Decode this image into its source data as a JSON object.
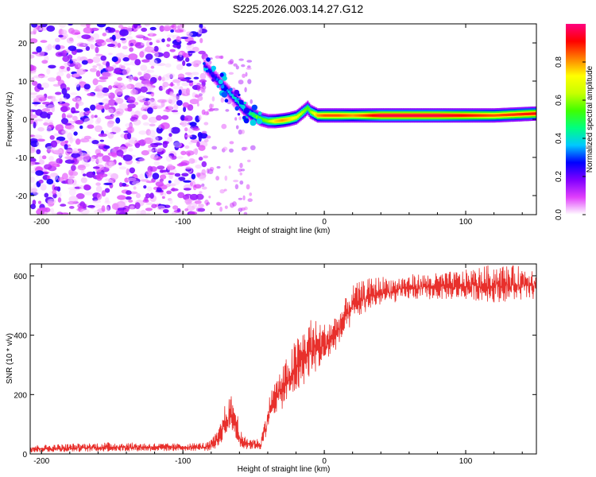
{
  "figure_title": "S225.2026.003.14.27.G12",
  "chart_data": [
    {
      "type": "heatmap",
      "title": "S225.2026.003.14.27.G12",
      "xlabel": "Height of straight line (km)",
      "ylabel": "Frequency (Hz)",
      "xlim": [
        -208,
        150
      ],
      "ylim": [
        -25,
        25
      ],
      "x_ticks": [
        -200,
        -100,
        0,
        100
      ],
      "y_ticks": [
        -20,
        -10,
        0,
        10,
        20
      ],
      "x_tick_labels": [
        "-200",
        "-100",
        "0",
        "100"
      ],
      "y_tick_labels": [
        "-20",
        "-10",
        "0",
        "10",
        "20"
      ],
      "noise_region_x": [
        -208,
        -83
      ],
      "ridge": {
        "x": [
          -85,
          -80,
          -75,
          -70,
          -65,
          -60,
          -55,
          -50,
          -45,
          -40,
          -35,
          -30,
          -25,
          -20,
          -15,
          -12,
          -10,
          -5,
          0,
          10,
          20,
          40,
          60,
          80,
          100,
          120,
          150
        ],
        "freq": [
          14,
          12,
          10,
          8,
          6,
          4,
          2,
          1,
          0,
          -0.5,
          -0.5,
          -0.3,
          0,
          0.5,
          2,
          3,
          2,
          1,
          1,
          1,
          1,
          1,
          1,
          1,
          1,
          1,
          1.5
        ],
        "amplitude": [
          0.2,
          0.25,
          0.3,
          0.3,
          0.35,
          0.4,
          0.45,
          0.5,
          0.55,
          0.6,
          0.75,
          0.8,
          0.75,
          0.7,
          0.6,
          0.55,
          0.6,
          0.8,
          0.85,
          0.85,
          0.8,
          0.95,
          0.95,
          0.95,
          0.9,
          0.85,
          0.9
        ]
      },
      "colorbar": {
        "label": "Normalized spectral amplitude",
        "range": [
          0,
          1
        ],
        "ticks": [
          0.0,
          0.2,
          0.4,
          0.6,
          0.8
        ],
        "tick_labels": [
          "0.0",
          "0.2",
          "0.4",
          "0.6",
          "0.8"
        ],
        "colors": [
          "#ffffff",
          "#e040fb",
          "#8000ff",
          "#0000ff",
          "#00c8ff",
          "#00ff80",
          "#40ff00",
          "#c8ff00",
          "#ffff00",
          "#ff8000",
          "#ff0000",
          "#ff0080"
        ]
      }
    },
    {
      "type": "line",
      "title": "",
      "xlabel": "Height of straight line (km)",
      "ylabel": "SNR (10 * v/v)",
      "xlim": [
        -208,
        150
      ],
      "ylim": [
        0,
        640
      ],
      "x_ticks": [
        -200,
        -100,
        0,
        100
      ],
      "y_ticks": [
        0,
        200,
        400,
        600
      ],
      "x_tick_labels": [
        "-200",
        "-100",
        "0",
        "100"
      ],
      "y_tick_labels": [
        "0",
        "200",
        "400",
        "600"
      ],
      "series": [
        {
          "name": "SNR",
          "color": "#e8302c",
          "envelope_x": [
            -208,
            -150,
            -100,
            -82,
            -75,
            -70,
            -65,
            -62,
            -58,
            -45,
            -40,
            -37,
            -30,
            -20,
            -10,
            0,
            10,
            20,
            30,
            40,
            50,
            60,
            80,
            100,
            120,
            150
          ],
          "envelope_low": [
            5,
            8,
            10,
            10,
            20,
            60,
            70,
            40,
            15,
            15,
            60,
            130,
            150,
            200,
            260,
            300,
            360,
            440,
            480,
            500,
            510,
            520,
            520,
            520,
            510,
            520
          ],
          "envelope_high": [
            30,
            40,
            35,
            40,
            80,
            170,
            205,
            150,
            60,
            50,
            170,
            230,
            290,
            390,
            460,
            440,
            480,
            570,
            590,
            600,
            595,
            605,
            610,
            620,
            640,
            630
          ]
        }
      ]
    }
  ]
}
